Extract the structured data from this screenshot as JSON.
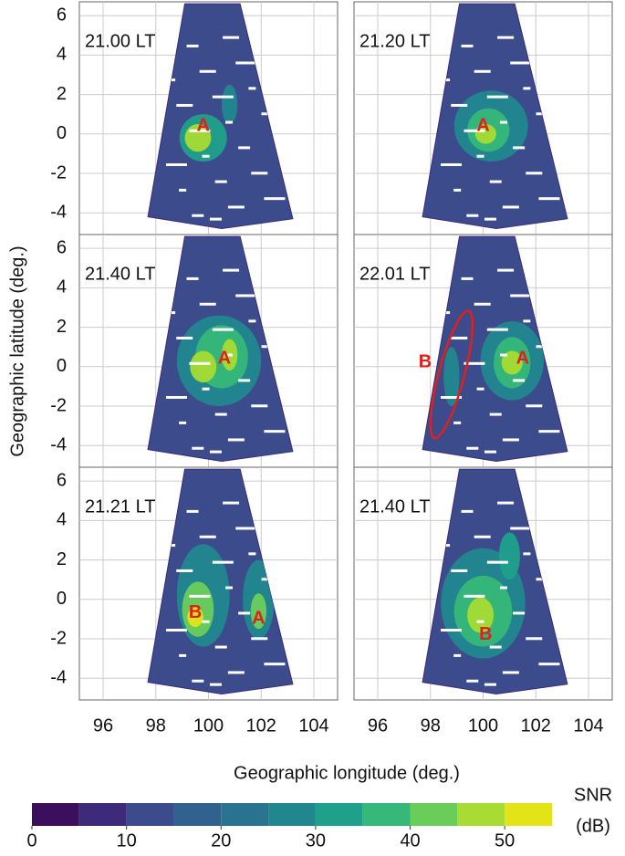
{
  "chart_data": {
    "type": "map-grid",
    "x_label": "Geographic longitude (deg.)",
    "y_label": "Geographic latitude (deg.)",
    "xlim": [
      95.1,
      104.9
    ],
    "ylim": [
      -5.1,
      6.7
    ],
    "xticks": [
      96,
      98,
      100,
      102,
      104
    ],
    "yticks": [
      -4,
      -2,
      0,
      2,
      4,
      6
    ],
    "grid": true,
    "panels": [
      {
        "label": "21.00 LT",
        "annotations": [
          "A"
        ]
      },
      {
        "label": "21.20 LT",
        "annotations": [
          "A"
        ]
      },
      {
        "label": "21.40 LT",
        "annotations": [
          "A"
        ]
      },
      {
        "label": "22.01 LT",
        "annotations": [
          "A",
          "B"
        ]
      },
      {
        "label": "21.21 LT",
        "annotations": [
          "B",
          "A"
        ]
      },
      {
        "label": "21.40 LT",
        "annotations": [
          "B"
        ]
      }
    ],
    "colorbar": {
      "label": [
        "SNR",
        "(dB)"
      ],
      "bounds": [
        0,
        5,
        10,
        15,
        20,
        25,
        30,
        35,
        40,
        45,
        50,
        55
      ],
      "colors": [
        "#3b0f5e",
        "#3e2a7a",
        "#3b4b8c",
        "#31618f",
        "#2a7390",
        "#21878e",
        "#1fa08a",
        "#36b87a",
        "#6acd5a",
        "#a8db34",
        "#e3e418"
      ],
      "ticks": [
        0,
        10,
        20,
        30,
        40,
        50
      ]
    }
  }
}
